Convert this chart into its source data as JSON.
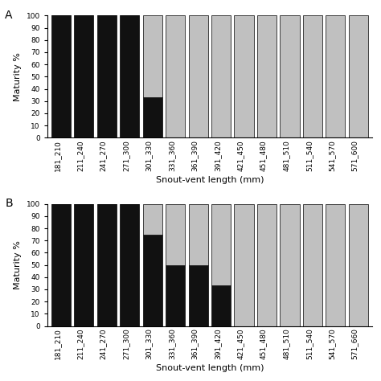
{
  "categories_A": [
    "181_210",
    "211_240",
    "241_270",
    "271_300",
    "301_330",
    "331_360",
    "361_390",
    "391_420",
    "421_450",
    "451_480",
    "481_510",
    "511_540",
    "541_570",
    "571_600"
  ],
  "immature_A": [
    100,
    100,
    100,
    100,
    33,
    0,
    0,
    0,
    0,
    0,
    0,
    0,
    0,
    0
  ],
  "mature_A": [
    0,
    0,
    0,
    0,
    67,
    100,
    100,
    100,
    100,
    100,
    100,
    100,
    100,
    100
  ],
  "categories_B": [
    "181_210",
    "211_240",
    "241_270",
    "271_300",
    "301_330",
    "331_360",
    "361_390",
    "391_420",
    "421_450",
    "451_480",
    "481_510",
    "511_540",
    "541_570",
    "571_660"
  ],
  "immature_B": [
    100,
    100,
    100,
    100,
    75,
    50,
    50,
    33,
    0,
    0,
    0,
    0,
    0,
    0
  ],
  "mature_B": [
    0,
    0,
    0,
    0,
    25,
    50,
    50,
    67,
    100,
    100,
    100,
    100,
    100,
    100
  ],
  "immature_color": "#111111",
  "mature_color": "#c0c0c0",
  "bar_edge_color": "#000000",
  "ylabel": "Maturity %",
  "xlabel": "Snout-vent length (mm)",
  "ylim": [
    0,
    100
  ],
  "yticks": [
    0,
    10,
    20,
    30,
    40,
    50,
    60,
    70,
    80,
    90,
    100
  ],
  "label_A": "A",
  "label_B": "B",
  "bar_width": 0.85,
  "tick_fontsize": 6.5,
  "axis_label_fontsize": 8.0,
  "panel_label_fontsize": 10,
  "figure_width": 4.74,
  "figure_height": 4.74
}
